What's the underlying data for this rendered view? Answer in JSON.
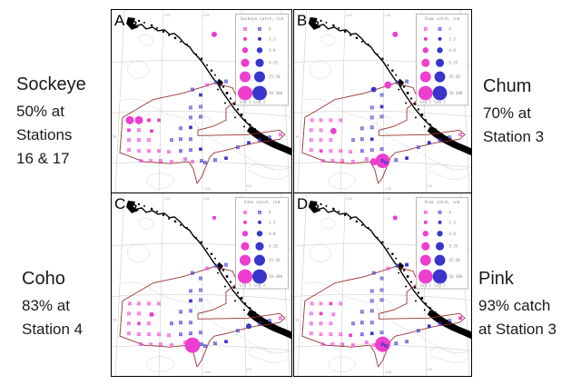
{
  "captions": {
    "sockeye": {
      "species": "Sockeye",
      "lines": [
        "50% at",
        "Stations",
        "16 & 17"
      ]
    },
    "chum": {
      "species": "Chum",
      "lines": [
        "70% at",
        "Station 3"
      ]
    },
    "coho": {
      "species": "Coho",
      "lines": [
        "83% at",
        "Station 4"
      ]
    },
    "pink": {
      "species": "Pink",
      "lines": [
        "93% catch",
        "at Station 3"
      ]
    }
  },
  "colors": {
    "leg1_pink": "#ee3ecf",
    "leg2_blue": "#3a35cb",
    "survey_polygon": "#993333",
    "coastline": "#000000",
    "graticule": "#b4b4b4",
    "contour": "#d2d2d2",
    "legend_text": "#8a8a8a",
    "caption_text": "#1b1b1b"
  },
  "chart_data": {
    "type": "map-bubble",
    "description": "Four map panels of salmon catch (individuals) at survey stations off the British Columbia / SE Alaska coast, two survey legs",
    "legend": {
      "bins": [
        "0",
        "1-3",
        "4-8",
        "9-25",
        "25-50",
        "50-300"
      ],
      "radii": [
        1.3,
        2,
        3.2,
        4.6,
        6,
        8
      ],
      "leg1_label": "Leg 1",
      "leg2_label": "Leg 2"
    },
    "axis_labels": {
      "top": [
        "-135",
        "-130",
        "-125"
      ],
      "left": [
        "50"
      ],
      "bottom": [
        "-130",
        "-125"
      ]
    },
    "stations": [
      [
        20,
        122,
        1
      ],
      [
        30,
        122,
        1
      ],
      [
        41,
        122,
        1
      ],
      [
        52,
        122,
        1
      ],
      [
        19,
        133,
        1
      ],
      [
        30,
        133,
        1
      ],
      [
        44,
        134,
        1
      ],
      [
        19,
        144,
        1
      ],
      [
        30,
        144,
        1
      ],
      [
        41,
        144,
        1
      ],
      [
        19,
        155,
        1
      ],
      [
        30,
        156,
        1
      ],
      [
        41,
        156,
        1
      ],
      [
        52,
        156,
        1
      ],
      [
        63,
        157,
        1
      ],
      [
        32,
        167,
        1
      ],
      [
        43,
        167,
        1
      ],
      [
        54,
        167,
        1
      ],
      [
        66,
        168,
        1
      ],
      [
        81,
        165,
        1
      ],
      [
        105,
        83,
        1
      ],
      [
        113,
        27,
        1
      ],
      [
        115,
        80,
        2
      ],
      [
        126,
        79,
        2
      ],
      [
        98,
        94,
        2
      ],
      [
        89,
        88,
        2
      ],
      [
        87,
        108,
        2
      ],
      [
        98,
        107,
        2
      ],
      [
        87,
        119,
        2
      ],
      [
        76,
        131,
        2
      ],
      [
        87,
        130,
        2
      ],
      [
        66,
        144,
        2
      ],
      [
        76,
        143,
        2
      ],
      [
        87,
        143,
        2
      ],
      [
        76,
        156,
        2
      ],
      [
        87,
        155,
        2
      ],
      [
        98,
        154,
        2
      ],
      [
        103,
        169,
        2
      ],
      [
        114,
        166,
        2
      ],
      [
        126,
        164,
        2
      ],
      [
        99,
        167,
        2
      ],
      [
        89,
        168,
        1
      ],
      [
        139,
        152,
        2
      ],
      [
        151,
        147,
        2
      ],
      [
        163,
        144,
        2
      ],
      [
        174,
        141,
        2
      ],
      [
        186,
        138,
        1
      ],
      [
        98,
        118,
        2
      ]
    ],
    "panels": [
      {
        "letter": "A",
        "species": "Sockeye",
        "legend_title": "Sockeye catch, ind",
        "highlight": "50% at Stations 16 & 17",
        "bubbles": [
          [
            0,
            4.5,
            "p"
          ],
          [
            1,
            4.5,
            "p"
          ],
          [
            2,
            2,
            "p"
          ],
          [
            3,
            1.6,
            "p"
          ],
          [
            4,
            1.8,
            "p"
          ],
          [
            6,
            1.8,
            "p"
          ],
          [
            21,
            3,
            "p"
          ],
          [
            24,
            1.5,
            "b"
          ],
          [
            30,
            1.6,
            "b"
          ],
          [
            36,
            1.5,
            "b"
          ],
          [
            43,
            1.6,
            "b"
          ],
          [
            39,
            1.5,
            "b"
          ]
        ]
      },
      {
        "letter": "B",
        "species": "Chum",
        "legend_title": "Chum catch, ind",
        "highlight": "70% at Station 3",
        "bubbles": [
          [
            40,
            8,
            "p"
          ],
          [
            41,
            4,
            "p"
          ],
          [
            6,
            3.5,
            "p"
          ],
          [
            20,
            4,
            "p"
          ],
          [
            25,
            3,
            "b"
          ],
          [
            21,
            3,
            "p"
          ],
          [
            27,
            1.6,
            "b"
          ],
          [
            33,
            1.6,
            "b"
          ],
          [
            43,
            2,
            "b"
          ],
          [
            39,
            1.8,
            "b"
          ],
          [
            11,
            1.6,
            "p"
          ]
        ]
      },
      {
        "letter": "C",
        "species": "Coho",
        "legend_title": "Coho catch, ind",
        "highlight": "83% at Station 4",
        "bubbles": [
          [
            41,
            8.5,
            "p"
          ],
          [
            6,
            2.6,
            "p"
          ],
          [
            43,
            3,
            "b"
          ],
          [
            21,
            1.8,
            "p"
          ],
          [
            8,
            1.5,
            "p"
          ],
          [
            39,
            1.5,
            "b"
          ],
          [
            28,
            1.5,
            "b"
          ]
        ]
      },
      {
        "letter": "D",
        "species": "Pink",
        "legend_title": "Pink catch, ind",
        "highlight": "93% catch at Station 3",
        "bubbles": [
          [
            40,
            8.5,
            "p"
          ],
          [
            5,
            1.8,
            "p"
          ],
          [
            14,
            1.8,
            "p"
          ],
          [
            23,
            2,
            "b"
          ],
          [
            21,
            2.5,
            "p"
          ],
          [
            43,
            1.8,
            "b"
          ],
          [
            35,
            1.5,
            "b"
          ],
          [
            2,
            1.6,
            "p"
          ],
          [
            46,
            1.8,
            "p"
          ]
        ]
      }
    ]
  }
}
